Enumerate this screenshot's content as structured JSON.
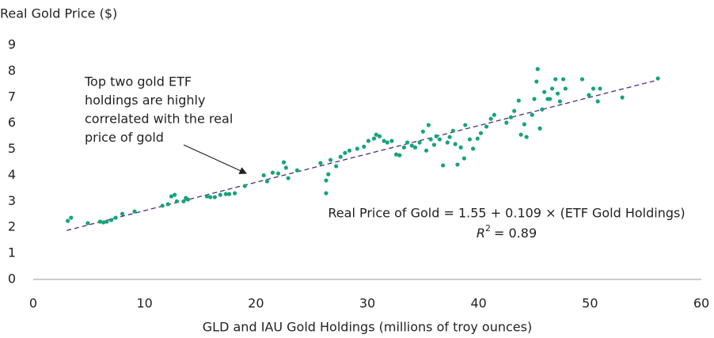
{
  "chart_data": {
    "type": "scatter",
    "y_axis_label": "Real Gold Price ($)",
    "x_axis_label": "GLD and IAU Gold Holdings (millions of troy ounces)",
    "color": "#17a37c",
    "x": [
      3.1,
      3.4,
      4.9,
      6.0,
      6.3,
      6.6,
      7.0,
      7.4,
      8.0,
      9.1,
      11.6,
      12.1,
      12.4,
      12.7,
      12.9,
      13.5,
      13.7,
      13.9,
      15.6,
      15.9,
      16.3,
      16.8,
      17.3,
      17.6,
      18.1,
      19.0,
      20.7,
      21.0,
      21.5,
      22.0,
      22.5,
      22.7,
      22.9,
      23.7,
      25.8,
      26.3,
      26.3,
      26.5,
      26.7,
      27.2,
      27.6,
      28.0,
      28.4,
      29.1,
      29.7,
      30.1,
      30.6,
      30.8,
      31.1,
      31.5,
      31.8,
      32.2,
      32.6,
      32.9,
      33.3,
      33.6,
      34.0,
      34.3,
      34.7,
      35.0,
      35.3,
      35.5,
      35.7,
      36.0,
      36.2,
      36.5,
      36.8,
      37.2,
      37.4,
      37.7,
      37.9,
      38.1,
      38.4,
      38.7,
      38.8,
      39.2,
      39.5,
      39.9,
      40.2,
      40.7,
      41.1,
      41.4,
      42.5,
      42.9,
      43.2,
      43.6,
      43.8,
      44.1,
      44.3,
      44.8,
      45.0,
      45.2,
      45.3,
      45.5,
      45.7,
      45.9,
      46.2,
      46.4,
      46.6,
      46.9,
      47.1,
      47.3,
      47.6,
      47.8,
      49.3,
      49.9,
      50.3,
      50.7,
      50.9,
      52.9,
      56.1
    ],
    "values": [
      2.25,
      2.37,
      2.16,
      2.22,
      2.19,
      2.22,
      2.28,
      2.37,
      2.52,
      2.61,
      2.83,
      2.89,
      3.19,
      3.25,
      3.0,
      3.0,
      3.13,
      3.07,
      3.19,
      3.16,
      3.16,
      3.25,
      3.28,
      3.28,
      3.31,
      3.59,
      4.0,
      3.77,
      4.1,
      4.07,
      4.5,
      4.29,
      3.89,
      4.19,
      4.47,
      3.8,
      3.31,
      4.04,
      4.59,
      4.35,
      4.71,
      4.86,
      4.95,
      5.02,
      5.1,
      5.32,
      5.41,
      5.56,
      5.5,
      5.32,
      5.26,
      5.32,
      4.8,
      4.77,
      5.07,
      5.26,
      5.14,
      5.07,
      5.26,
      5.68,
      4.95,
      5.93,
      5.38,
      5.17,
      5.5,
      5.38,
      4.38,
      5.26,
      5.47,
      5.71,
      5.2,
      4.41,
      5.07,
      4.65,
      5.93,
      5.38,
      5.02,
      5.41,
      5.62,
      5.87,
      6.17,
      6.32,
      6.02,
      6.23,
      6.47,
      6.87,
      5.56,
      5.96,
      5.47,
      6.32,
      6.93,
      7.6,
      8.08,
      5.8,
      6.53,
      7.2,
      6.93,
      6.93,
      7.33,
      7.69,
      7.14,
      6.84,
      7.69,
      7.33,
      7.69,
      7.08,
      7.33,
      6.84,
      7.33,
      6.99,
      7.72
    ],
    "trendline": {
      "x": [
        3,
        56
      ],
      "values": [
        1.88,
        7.65
      ],
      "color": "#4b2a82"
    },
    "annotation": [
      "Top two gold ETF",
      "holdings are highly",
      "correlated with the real",
      "price of gold"
    ],
    "equation": "Real Price of Gold = 1.55 + 0.109 × (ETF Gold Holdings)",
    "r_squared": {
      "symbol": "R",
      "superscript": "2",
      "text": "= 0.89"
    },
    "xlim": [
      0,
      60
    ],
    "xticks": [
      0,
      10,
      20,
      30,
      40,
      50,
      60
    ],
    "ylim": [
      0,
      9
    ],
    "yticks": [
      0,
      1,
      2,
      3,
      4,
      5,
      6,
      7,
      8,
      9
    ],
    "grid": false
  }
}
